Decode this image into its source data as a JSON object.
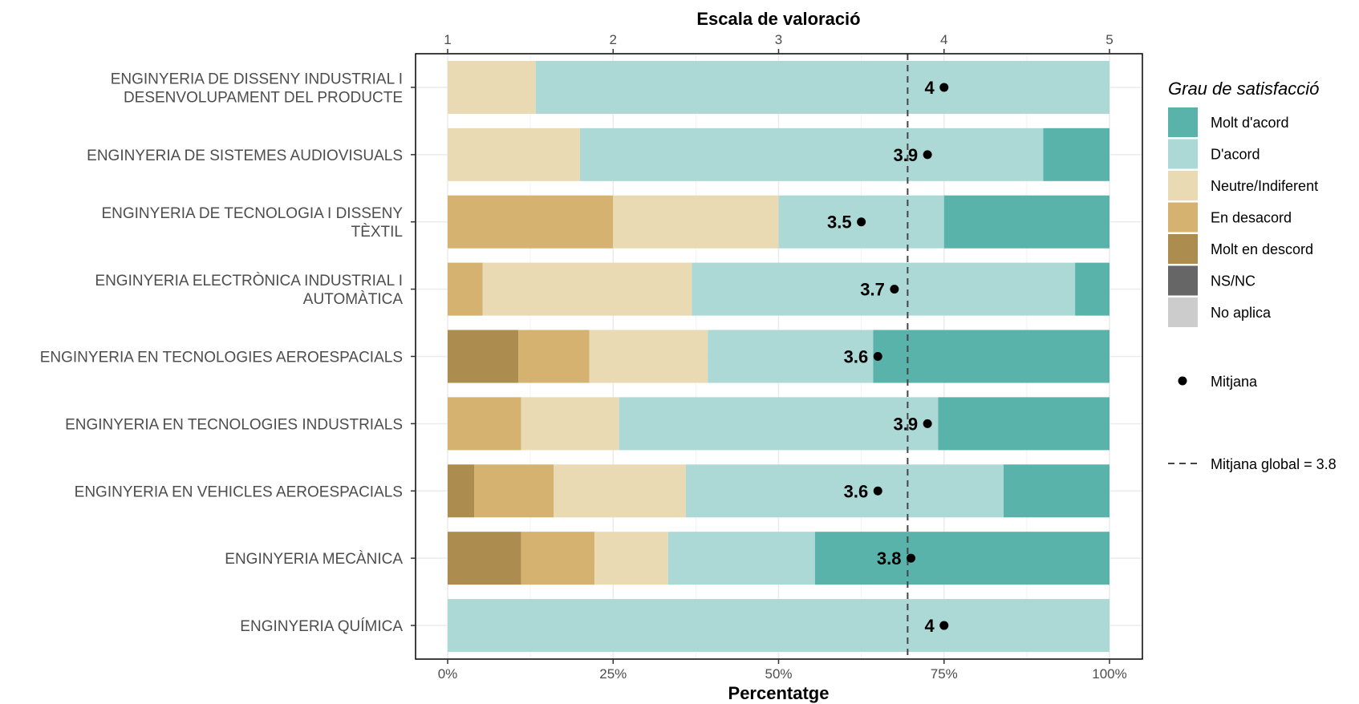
{
  "chart_data": {
    "type": "bar",
    "orientation": "horizontal",
    "stacked": "percent",
    "title": "",
    "xlabel": "Percentatge",
    "x2label": "Escala de valoració",
    "xlim": [
      0,
      100
    ],
    "x_ticks": [
      "0%",
      "25%",
      "50%",
      "75%",
      "100%"
    ],
    "x2_ticks": [
      "1",
      "2",
      "3",
      "4",
      "5"
    ],
    "x2lim": [
      1,
      5
    ],
    "categories": [
      "ENGINYERIA DE DISSENY INDUSTRIAL I DESENVOLUPAMENT DEL PRODUCTE",
      "ENGINYERIA DE SISTEMES AUDIOVISUALS",
      "ENGINYERIA DE TECNOLOGIA I DISSENY TÈXTIL",
      "ENGINYERIA ELECTRÒNICA INDUSTRIAL I AUTOMÀTICA",
      "ENGINYERIA EN TECNOLOGIES AEROESPACIALS",
      "ENGINYERIA EN TECNOLOGIES INDUSTRIALS",
      "ENGINYERIA EN VEHICLES AEROESPACIALS",
      "ENGINYERIA MECÀNICA",
      "ENGINYERIA QUÍMICA"
    ],
    "category_lines": [
      [
        "ENGINYERIA DE DISSENY INDUSTRIAL I",
        "DESENVOLUPAMENT DEL PRODUCTE"
      ],
      [
        "ENGINYERIA DE SISTEMES AUDIOVISUALS"
      ],
      [
        "ENGINYERIA DE TECNOLOGIA I DISSENY",
        "TÈXTIL"
      ],
      [
        "ENGINYERIA ELECTRÒNICA INDUSTRIAL I",
        "AUTOMÀTICA"
      ],
      [
        "ENGINYERIA EN TECNOLOGIES AEROESPACIALS"
      ],
      [
        "ENGINYERIA EN TECNOLOGIES INDUSTRIALS"
      ],
      [
        "ENGINYERIA EN VEHICLES AEROESPACIALS"
      ],
      [
        "ENGINYERIA MECÀNICA"
      ],
      [
        "ENGINYERIA QUÍMICA"
      ]
    ],
    "series": [
      {
        "name": "Molt en descord",
        "color": "#ad8d4f",
        "values": [
          0,
          0,
          0,
          0,
          10.7,
          0,
          4.0,
          11.1,
          0
        ]
      },
      {
        "name": "En desacord",
        "color": "#d6b270",
        "values": [
          0,
          0,
          25.0,
          5.3,
          10.7,
          11.1,
          12.0,
          11.1,
          0
        ]
      },
      {
        "name": "Neutre/Indiferent",
        "color": "#eadab3",
        "values": [
          13.3,
          20.0,
          25.0,
          31.6,
          17.9,
          14.8,
          20.0,
          11.1,
          0
        ]
      },
      {
        "name": "D'acord",
        "color": "#acd9d6",
        "values": [
          86.7,
          70.0,
          25.0,
          57.9,
          25.0,
          48.2,
          48.0,
          22.2,
          100
        ]
      },
      {
        "name": "Molt d'acord",
        "color": "#5ab3ab",
        "values": [
          0,
          10.0,
          25.0,
          5.2,
          35.7,
          25.9,
          16.0,
          44.5,
          0
        ]
      },
      {
        "name": "NS/NC",
        "color": "#666666",
        "values": [
          0,
          0,
          0,
          0,
          0,
          0,
          0,
          0,
          0
        ]
      },
      {
        "name": "No aplica",
        "color": "#cccccc",
        "values": [
          0,
          0,
          0,
          0,
          0,
          0,
          0,
          0,
          0
        ]
      }
    ],
    "legend_order": [
      "Molt d'acord",
      "D'acord",
      "Neutre/Indiferent",
      "En desacord",
      "Molt en descord",
      "NS/NC",
      "No aplica"
    ],
    "means": [
      4.0,
      3.9,
      3.5,
      3.7,
      3.6,
      3.9,
      3.6,
      3.8,
      4.0
    ],
    "mean_labels": [
      "4",
      "3.9",
      "3.5",
      "3.7",
      "3.6",
      "3.9",
      "3.6",
      "3.8",
      "4"
    ],
    "global_mean": 3.8,
    "global_mean_position": 3.78,
    "legend": {
      "title": "Grau de satisfacció",
      "placement": "right",
      "mean_label": "Mitjana",
      "global_mean_label": "Mitjana global =  3.8"
    },
    "grid": true
  }
}
